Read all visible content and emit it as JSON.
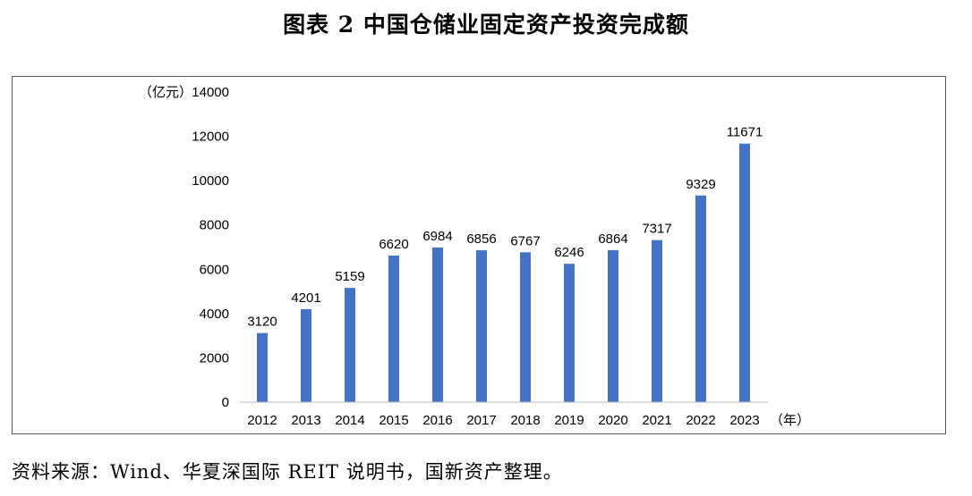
{
  "figure": {
    "title": "图表 2  中国仓储业固定资产投资完成额",
    "source": "资料来源：Wind、华夏深国际 REIT 说明书，国新资产整理。"
  },
  "chart_data": {
    "type": "bar",
    "title": "图表 2  中国仓储业固定资产投资完成额",
    "xlabel": "（年）",
    "ylabel": "（亿元）",
    "categories": [
      "2012",
      "2013",
      "2014",
      "2015",
      "2016",
      "2017",
      "2018",
      "2019",
      "2020",
      "2021",
      "2022",
      "2023"
    ],
    "values": [
      3120,
      4201,
      5159,
      6620,
      6984,
      6856,
      6767,
      6246,
      6864,
      7317,
      9329,
      11671
    ],
    "data_labels": [
      "3120",
      "4201",
      "5159",
      "6620",
      "6984",
      "6856",
      "6767",
      "6246",
      "6864",
      "7317",
      "9329",
      "11671"
    ],
    "ylim": [
      0,
      14000
    ],
    "yticks": [
      0,
      2000,
      4000,
      6000,
      8000,
      10000,
      12000,
      14000
    ],
    "grid": false,
    "legend": "none",
    "bar_color": "#4472c4"
  }
}
